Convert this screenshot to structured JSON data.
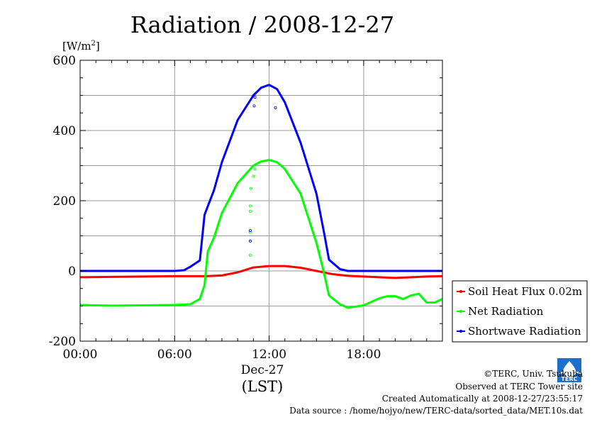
{
  "chart_data": {
    "type": "line",
    "title": "Radiation / 2008-12-27",
    "ylabel": "[W/m²]",
    "ylabel_base": "[W/m",
    "ylabel_sup": "2",
    "ylabel_end": "]",
    "xlabel_date": "Dec-27",
    "xlabel_zone": "(LST)",
    "xlim": [
      0,
      23
    ],
    "ylim": [
      -200,
      600
    ],
    "grid": true,
    "legend_position": "right",
    "x_ticks": [
      {
        "value": 0,
        "label": "00:00"
      },
      {
        "value": 6,
        "label": "06:00"
      },
      {
        "value": 12,
        "label": "12:00"
      },
      {
        "value": 18,
        "label": "18:00"
      }
    ],
    "y_ticks": [
      {
        "value": -200,
        "label": "-200"
      },
      {
        "value": 0,
        "label": "0"
      },
      {
        "value": 200,
        "label": "200"
      },
      {
        "value": 400,
        "label": "400"
      },
      {
        "value": 600,
        "label": "600"
      }
    ],
    "series": [
      {
        "name": "Soil Heat Flux 0.02m",
        "color": "#ff0000",
        "x": [
          0,
          2,
          4,
          6,
          7,
          8,
          9,
          10,
          11,
          12,
          13,
          14,
          15,
          16,
          17,
          18,
          19,
          20,
          21,
          22,
          23
        ],
        "y": [
          -18,
          -17,
          -16,
          -15,
          -15,
          -15,
          -13,
          -4,
          10,
          14,
          14,
          9,
          0,
          -9,
          -14,
          -16,
          -18,
          -20,
          -18,
          -16,
          -15
        ]
      },
      {
        "name": "Net Radiation",
        "color": "#00ff00",
        "x": [
          0,
          2,
          4,
          6,
          7,
          7.6,
          7.9,
          8.1,
          8.5,
          9,
          10,
          11,
          11.5,
          12,
          12.5,
          13,
          14,
          15,
          15.4,
          15.8,
          16.5,
          17,
          18,
          19,
          19.5,
          20,
          20.5,
          21,
          21.5,
          22,
          22.5,
          23
        ],
        "y": [
          -97,
          -99,
          -98,
          -97,
          -95,
          -80,
          -40,
          55,
          95,
          165,
          250,
          300,
          312,
          316,
          310,
          290,
          220,
          80,
          10,
          -70,
          -95,
          -105,
          -98,
          -78,
          -72,
          -72,
          -80,
          -70,
          -65,
          -90,
          -90,
          -80
        ]
      },
      {
        "name": "Shortwave Radiation",
        "color": "#0000ff",
        "x": [
          0,
          2,
          4,
          6,
          6.6,
          7,
          7.6,
          7.9,
          8.5,
          9,
          10,
          11,
          11.5,
          12,
          12.5,
          13,
          14,
          15,
          15.5,
          15.8,
          16.5,
          17,
          18,
          20,
          22,
          23
        ],
        "y": [
          0,
          0,
          0,
          0,
          2,
          12,
          30,
          160,
          230,
          310,
          430,
          500,
          522,
          530,
          518,
          480,
          365,
          220,
          105,
          32,
          5,
          0,
          0,
          0,
          0,
          0
        ]
      }
    ],
    "scatter_points": [
      {
        "x": 10.8,
        "y": 45,
        "color": "#00ff00"
      },
      {
        "x": 10.8,
        "y": 85,
        "color": "#00ff00"
      },
      {
        "x": 10.8,
        "y": 110,
        "color": "#00ff00"
      },
      {
        "x": 10.8,
        "y": 170,
        "color": "#00ff00"
      },
      {
        "x": 10.8,
        "y": 185,
        "color": "#00ff00"
      },
      {
        "x": 10.85,
        "y": 235,
        "color": "#00ff00"
      },
      {
        "x": 11.0,
        "y": 270,
        "color": "#00ff00"
      },
      {
        "x": 11.1,
        "y": 290,
        "color": "#00ff00"
      },
      {
        "x": 10.8,
        "y": 85,
        "color": "#0000ff"
      },
      {
        "x": 10.8,
        "y": 115,
        "color": "#0000ff"
      },
      {
        "x": 11.05,
        "y": 470,
        "color": "#0000ff"
      },
      {
        "x": 11.1,
        "y": 495,
        "color": "#0000ff"
      },
      {
        "x": 12.4,
        "y": 465,
        "color": "#0000ff"
      }
    ]
  },
  "footer": {
    "copyright": "©TERC, Univ. Tsukuba",
    "site": "Observed at TERC Tower site",
    "created": "Created Automatically at 2008-12-27/23:55:17",
    "source": "Data source : /home/hojyo/new/TERC-data/sorted_data/MET.10s.dat"
  },
  "logo": {
    "text": "TERC",
    "color": "#1e6fc8"
  }
}
